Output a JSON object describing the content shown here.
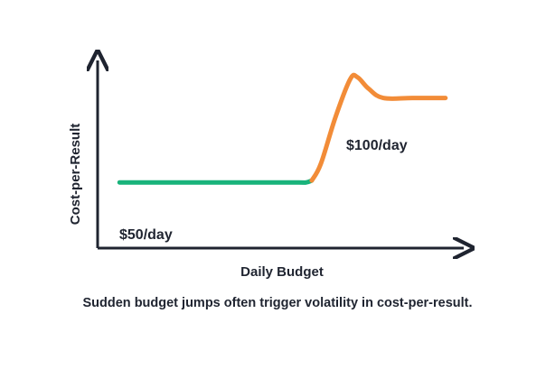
{
  "caption": "Sudden budget jumps often trigger volatility in cost-per-result.",
  "colors": {
    "axis": "#1f2430",
    "before": "#19b37b",
    "after": "#f28c38"
  },
  "chart_data": {
    "type": "line",
    "xlabel": "Daily Budget",
    "ylabel": "Cost-per-Result",
    "grid": false,
    "annotations": [
      {
        "text": "$50/day",
        "near": "bottom-left"
      },
      {
        "text": "$100/day",
        "near": "right, below curve"
      }
    ],
    "series": [
      {
        "values_normalized": [
          0.35,
          0.35,
          0.35,
          0.35,
          0.35,
          0.36
        ],
        "x_normalized": [
          0.06,
          0.25,
          0.45,
          0.55,
          0.57,
          0.585
        ]
      },
      {
        "values_normalized": [
          0.36,
          0.45,
          0.7,
          0.9,
          0.91,
          0.85,
          0.8,
          0.8,
          0.8
        ],
        "x_normalized": [
          0.585,
          0.61,
          0.65,
          0.69,
          0.71,
          0.74,
          0.78,
          0.86,
          0.95
        ]
      }
    ]
  }
}
